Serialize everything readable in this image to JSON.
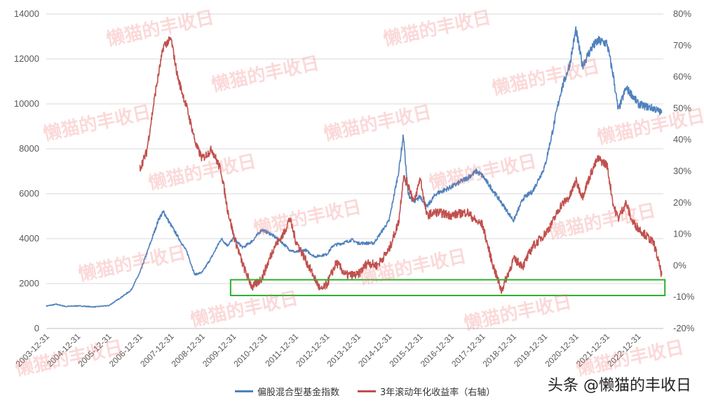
{
  "chart_data": {
    "type": "line",
    "title": "",
    "x_labels": [
      "2003-12-31",
      "2004-12-31",
      "2005-12-31",
      "2006-12-31",
      "2007-12-31",
      "2008-12-31",
      "2009-12-31",
      "2010-12-31",
      "2011-12-31",
      "2012-12-31",
      "2013-12-31",
      "2014-12-31",
      "2015-12-31",
      "2016-12-31",
      "2017-12-31",
      "2018-12-31",
      "2019-12-31",
      "2020-12-31",
      "2021-12-31",
      "2022-12-31"
    ],
    "left_axis": {
      "min": 0,
      "max": 14000,
      "ticks": [
        "0",
        "2000",
        "4000",
        "6000",
        "8000",
        "10000",
        "12000",
        "14000"
      ]
    },
    "right_axis": {
      "min": -20,
      "max": 80,
      "ticks": [
        "-20%",
        "-10%",
        "0%",
        "10%",
        "20%",
        "30%",
        "40%",
        "50%",
        "60%",
        "70%",
        "80%"
      ]
    },
    "series": [
      {
        "name": "偏股混合型基金指数",
        "color": "#4F81BD",
        "axis": "left",
        "points": [
          [
            2003.98,
            1000
          ],
          [
            2004.3,
            1080
          ],
          [
            2004.6,
            980
          ],
          [
            2004.99,
            1010
          ],
          [
            2005.5,
            960
          ],
          [
            2005.99,
            1020
          ],
          [
            2006.4,
            1400
          ],
          [
            2006.7,
            1700
          ],
          [
            2006.99,
            2500
          ],
          [
            2007.3,
            3700
          ],
          [
            2007.6,
            4900
          ],
          [
            2007.75,
            5200
          ],
          [
            2007.9,
            4800
          ],
          [
            2008.2,
            4100
          ],
          [
            2008.5,
            3400
          ],
          [
            2008.75,
            2400
          ],
          [
            2008.99,
            2500
          ],
          [
            2009.3,
            3200
          ],
          [
            2009.6,
            4000
          ],
          [
            2009.8,
            3700
          ],
          [
            2009.99,
            4000
          ],
          [
            2010.3,
            3600
          ],
          [
            2010.6,
            3900
          ],
          [
            2010.9,
            4400
          ],
          [
            2011.2,
            4200
          ],
          [
            2011.5,
            3900
          ],
          [
            2011.8,
            3500
          ],
          [
            2011.99,
            3400
          ],
          [
            2012.3,
            3500
          ],
          [
            2012.6,
            3200
          ],
          [
            2012.99,
            3300
          ],
          [
            2013.2,
            3700
          ],
          [
            2013.5,
            3800
          ],
          [
            2013.8,
            3950
          ],
          [
            2013.99,
            3800
          ],
          [
            2014.5,
            3800
          ],
          [
            2014.99,
            4800
          ],
          [
            2015.3,
            7000
          ],
          [
            2015.45,
            8600
          ],
          [
            2015.6,
            6000
          ],
          [
            2015.8,
            5600
          ],
          [
            2015.99,
            5900
          ],
          [
            2016.2,
            5400
          ],
          [
            2016.5,
            6000
          ],
          [
            2016.99,
            6300
          ],
          [
            2017.5,
            6700
          ],
          [
            2017.8,
            7000
          ],
          [
            2017.99,
            6800
          ],
          [
            2018.3,
            6200
          ],
          [
            2018.6,
            5600
          ],
          [
            2018.99,
            4800
          ],
          [
            2019.3,
            5800
          ],
          [
            2019.6,
            6100
          ],
          [
            2019.99,
            7200
          ],
          [
            2020.2,
            8500
          ],
          [
            2020.5,
            10500
          ],
          [
            2020.8,
            11800
          ],
          [
            2020.99,
            13300
          ],
          [
            2021.2,
            11700
          ],
          [
            2021.5,
            12500
          ],
          [
            2021.7,
            12800
          ],
          [
            2021.99,
            12700
          ],
          [
            2022.2,
            11200
          ],
          [
            2022.35,
            9700
          ],
          [
            2022.6,
            10700
          ],
          [
            2022.8,
            10400
          ],
          [
            2022.99,
            10000
          ],
          [
            2023.2,
            9900
          ],
          [
            2023.5,
            9800
          ],
          [
            2023.75,
            9600
          ]
        ]
      },
      {
        "name": "3年滚动年化收益率（右轴）",
        "color": "#C0504D",
        "axis": "right",
        "points": [
          [
            2006.99,
            31
          ],
          [
            2007.2,
            36
          ],
          [
            2007.5,
            56
          ],
          [
            2007.75,
            70
          ],
          [
            2007.99,
            72
          ],
          [
            2008.2,
            60
          ],
          [
            2008.5,
            50
          ],
          [
            2008.8,
            38
          ],
          [
            2008.99,
            34
          ],
          [
            2009.3,
            37
          ],
          [
            2009.6,
            30
          ],
          [
            2009.8,
            18
          ],
          [
            2009.99,
            10
          ],
          [
            2010.3,
            0
          ],
          [
            2010.6,
            -7
          ],
          [
            2010.9,
            -4
          ],
          [
            2010.99,
            -2
          ],
          [
            2011.3,
            6
          ],
          [
            2011.6,
            10
          ],
          [
            2011.8,
            15
          ],
          [
            2011.99,
            8
          ],
          [
            2012.3,
            2
          ],
          [
            2012.6,
            -4
          ],
          [
            2012.8,
            -8
          ],
          [
            2012.99,
            -6
          ],
          [
            2013.3,
            1
          ],
          [
            2013.6,
            -3
          ],
          [
            2013.99,
            -3
          ],
          [
            2014.3,
            1
          ],
          [
            2014.6,
            0
          ],
          [
            2014.99,
            5
          ],
          [
            2015.3,
            14
          ],
          [
            2015.45,
            28
          ],
          [
            2015.6,
            26
          ],
          [
            2015.8,
            20
          ],
          [
            2015.99,
            28
          ],
          [
            2016.2,
            16
          ],
          [
            2016.5,
            17
          ],
          [
            2016.99,
            16
          ],
          [
            2017.5,
            17
          ],
          [
            2017.8,
            14
          ],
          [
            2017.99,
            13
          ],
          [
            2018.3,
            1
          ],
          [
            2018.6,
            -8
          ],
          [
            2018.99,
            2
          ],
          [
            2019.3,
            0
          ],
          [
            2019.6,
            6
          ],
          [
            2019.99,
            10
          ],
          [
            2020.2,
            13
          ],
          [
            2020.5,
            19
          ],
          [
            2020.8,
            22
          ],
          [
            2020.99,
            27
          ],
          [
            2021.2,
            22
          ],
          [
            2021.5,
            30
          ],
          [
            2021.7,
            34
          ],
          [
            2021.99,
            32
          ],
          [
            2022.2,
            19
          ],
          [
            2022.35,
            15
          ],
          [
            2022.6,
            20
          ],
          [
            2022.8,
            14
          ],
          [
            2022.99,
            12
          ],
          [
            2023.2,
            10
          ],
          [
            2023.5,
            7
          ],
          [
            2023.75,
            -3
          ]
        ]
      }
    ],
    "highlight_box": {
      "x_from": 2009.9,
      "x_to": 2023.85,
      "y_from_pct": -9.5,
      "y_to_pct": -4.5,
      "color": "#2EAE2E"
    }
  },
  "legend": {
    "series1": "偏股混合型基金指数",
    "series2": "3年滚动年化收益率（右轴）"
  },
  "credit": "头条 @懒猫的丰收日",
  "watermark": "懒猫的丰收日"
}
